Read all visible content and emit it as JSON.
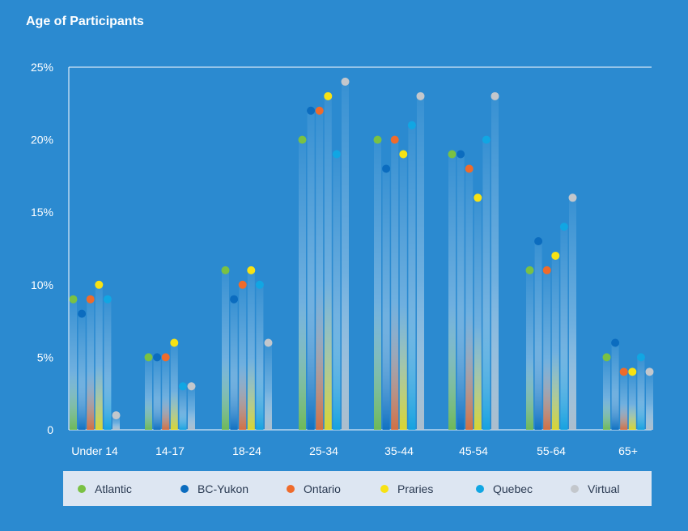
{
  "chart_data": {
    "type": "bar",
    "title": "Age of Participants",
    "categories": [
      "Under 14",
      "14-17",
      "18-24",
      "25-34",
      "35-44",
      "45-54",
      "55-64",
      "65+"
    ],
    "ylim": [
      0,
      25
    ],
    "yticks": [
      {
        "value": 0,
        "label": "0"
      },
      {
        "value": 5,
        "label": "5%"
      },
      {
        "value": 10,
        "label": "10%"
      },
      {
        "value": 15,
        "label": "15%"
      },
      {
        "value": 20,
        "label": "20%"
      },
      {
        "value": 25,
        "label": "25%"
      }
    ],
    "legend_position": "bottom",
    "grid": false,
    "series": [
      {
        "name": "Atlantic",
        "color": "#7ac143",
        "values": [
          9,
          5,
          11,
          20,
          20,
          19,
          11,
          5
        ]
      },
      {
        "name": "BC-Yukon",
        "color": "#0b6cbf",
        "values": [
          8,
          5,
          9,
          22,
          18,
          19,
          13,
          6
        ]
      },
      {
        "name": "Ontario",
        "color": "#ef6b2b",
        "values": [
          9,
          5,
          10,
          22,
          20,
          18,
          11,
          4
        ]
      },
      {
        "name": "Praries",
        "color": "#f7e214",
        "values": [
          10,
          6,
          11,
          23,
          19,
          16,
          12,
          4
        ]
      },
      {
        "name": "Quebec",
        "color": "#11a6e3",
        "values": [
          9,
          3,
          10,
          19,
          21,
          20,
          14,
          5
        ]
      },
      {
        "name": "Virtual",
        "color": "#c3c7cc",
        "values": [
          1,
          3,
          6,
          24,
          23,
          23,
          16,
          4
        ]
      }
    ]
  },
  "colors": {
    "background": "#2b8ad0",
    "axis": "#ffffff",
    "legend_background": "#dde6f2",
    "legend_text": "#2a3a52"
  }
}
